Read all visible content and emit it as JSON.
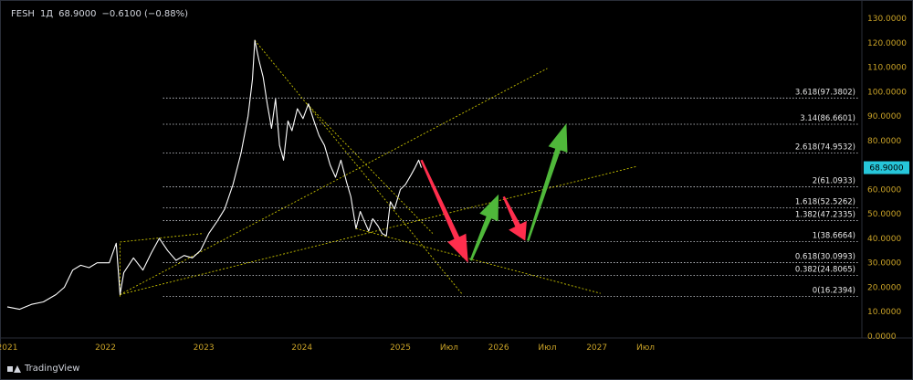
{
  "header": {
    "symbol": "FESH",
    "interval": "1Д",
    "price": "68.9000",
    "change": "−0.6100 (−0.88%)"
  },
  "footer": {
    "brand": "TradingView"
  },
  "colors": {
    "price_line": "#ffffff",
    "fib_lines": "#d1d4dc",
    "trend_lines": "#c8c200",
    "bear_arrow": "#ff2e4d",
    "bull_arrow": "#4fb83a",
    "price_badge": "#26c6da",
    "axis_text": "#c9a227"
  },
  "chart_data": {
    "type": "line",
    "title": "",
    "y_axis": {
      "range": [
        0,
        130
      ],
      "ticks": [
        "130.0000",
        "120.0000",
        "110.0000",
        "100.0000",
        "90.0000",
        "80.0000",
        "70.0000",
        "60.0000",
        "50.0000",
        "40.0000",
        "30.0000",
        "20.0000",
        "10.0000",
        "0.0000"
      ],
      "current_price_label": "68.9000",
      "current_price": 68.9
    },
    "x_axis": {
      "ticks": [
        {
          "label": "2021",
          "date": "2021-01-01"
        },
        {
          "label": "2022",
          "date": "2022-01-01"
        },
        {
          "label": "2023",
          "date": "2023-01-01"
        },
        {
          "label": "2024",
          "date": "2024-01-01"
        },
        {
          "label": "2025",
          "date": "2025-01-01"
        },
        {
          "label": "Июл",
          "date": "2025-07-01"
        },
        {
          "label": "2026",
          "date": "2026-01-01"
        },
        {
          "label": "Июл",
          "date": "2026-07-01"
        },
        {
          "label": "2027",
          "date": "2027-01-01"
        },
        {
          "label": "Июл",
          "date": "2027-07-01"
        }
      ]
    },
    "series": [
      {
        "values": [
          [
            "2021-01-01",
            12
          ],
          [
            "2021-02-15",
            11
          ],
          [
            "2021-04-01",
            13
          ],
          [
            "2021-05-15",
            14
          ],
          [
            "2021-07-01",
            17
          ],
          [
            "2021-08-01",
            20
          ],
          [
            "2021-09-01",
            27
          ],
          [
            "2021-10-01",
            29
          ],
          [
            "2021-11-01",
            28
          ],
          [
            "2021-12-01",
            30
          ],
          [
            "2022-01-15",
            30
          ],
          [
            "2022-02-10",
            38
          ],
          [
            "2022-02-24",
            17
          ],
          [
            "2022-03-10",
            26
          ],
          [
            "2022-04-15",
            32
          ],
          [
            "2022-05-20",
            27
          ],
          [
            "2022-06-20",
            34
          ],
          [
            "2022-07-20",
            40
          ],
          [
            "2022-08-20",
            35
          ],
          [
            "2022-09-20",
            31
          ],
          [
            "2022-10-20",
            33
          ],
          [
            "2022-11-20",
            32
          ],
          [
            "2022-12-20",
            35
          ],
          [
            "2023-01-20",
            42
          ],
          [
            "2023-02-20",
            47
          ],
          [
            "2023-03-20",
            52
          ],
          [
            "2023-04-20",
            62
          ],
          [
            "2023-05-20",
            75
          ],
          [
            "2023-06-15",
            90
          ],
          [
            "2023-07-01",
            105
          ],
          [
            "2023-07-10",
            121
          ],
          [
            "2023-07-25",
            113
          ],
          [
            "2023-08-10",
            106
          ],
          [
            "2023-08-25",
            95
          ],
          [
            "2023-09-10",
            85
          ],
          [
            "2023-09-25",
            97
          ],
          [
            "2023-10-10",
            78
          ],
          [
            "2023-10-25",
            72
          ],
          [
            "2023-11-10",
            88
          ],
          [
            "2023-11-25",
            84
          ],
          [
            "2023-12-15",
            93
          ],
          [
            "2024-01-05",
            89
          ],
          [
            "2024-01-25",
            95
          ],
          [
            "2024-02-15",
            88
          ],
          [
            "2024-03-05",
            82
          ],
          [
            "2024-03-25",
            78
          ],
          [
            "2024-04-15",
            70
          ],
          [
            "2024-05-05",
            65
          ],
          [
            "2024-05-25",
            72
          ],
          [
            "2024-06-15",
            63
          ],
          [
            "2024-07-01",
            57
          ],
          [
            "2024-07-20",
            44
          ],
          [
            "2024-08-05",
            51
          ],
          [
            "2024-08-20",
            47
          ],
          [
            "2024-09-05",
            43
          ],
          [
            "2024-09-20",
            48
          ],
          [
            "2024-10-10",
            45
          ],
          [
            "2024-10-25",
            42
          ],
          [
            "2024-11-10",
            41
          ],
          [
            "2024-11-25",
            55
          ],
          [
            "2024-12-10",
            52
          ],
          [
            "2025-01-01",
            60
          ],
          [
            "2025-01-20",
            62
          ],
          [
            "2025-02-10",
            66
          ],
          [
            "2025-02-25",
            69
          ],
          [
            "2025-03-10",
            72
          ],
          [
            "2025-03-20",
            68.9
          ]
        ]
      }
    ],
    "fibonacci": [
      {
        "ratio": "3.618",
        "value": 97.3802,
        "label": "3.618(97.3802)"
      },
      {
        "ratio": "3.14",
        "value": 86.6601,
        "label": "3.14(86.6601)"
      },
      {
        "ratio": "2.618",
        "value": 74.9532,
        "label": "2.618(74.9532)"
      },
      {
        "ratio": "2",
        "value": 61.0933,
        "label": "2(61.0933)"
      },
      {
        "ratio": "1.618",
        "value": 52.5262,
        "label": "1.618(52.5262)"
      },
      {
        "ratio": "1.382",
        "value": 47.2335,
        "label": "1.382(47.2335)"
      },
      {
        "ratio": "1",
        "value": 38.6664,
        "label": "1(38.6664)"
      },
      {
        "ratio": "0.618",
        "value": 30.0993,
        "label": "0.618(30.0993)"
      },
      {
        "ratio": "0.382",
        "value": 24.8065,
        "label": "0.382(24.8065)"
      },
      {
        "ratio": "0",
        "value": 16.2394,
        "label": "0(16.2394)"
      }
    ],
    "fib_start_date": "2025-01-01",
    "fib_end_date": "2027-12-31",
    "trend_lines": [
      {
        "from": [
          "2022-02-24",
          17
        ],
        "to": [
          "2026-07-01",
          109.5
        ]
      },
      {
        "from": [
          "2022-02-24",
          17
        ],
        "to": [
          "2027-06-01",
          69.5
        ]
      },
      {
        "from": [
          "2022-02-24",
          16.2
        ],
        "to": [
          "2022-02-24",
          38.5
        ]
      },
      {
        "from": [
          "2022-02-24",
          38.5
        ],
        "to": [
          "2023-01-01",
          42
        ]
      },
      {
        "from": [
          "2023-07-10",
          121
        ],
        "to": [
          "2025-08-20",
          17
        ]
      },
      {
        "from": [
          "2024-01-20",
          95
        ],
        "to": [
          "2025-05-01",
          42
        ]
      },
      {
        "from": [
          "2024-07-20",
          44
        ],
        "to": [
          "2027-01-15",
          17.5
        ]
      }
    ],
    "arrows": [
      {
        "kind": "bear",
        "from": [
          "2025-03-20",
          72
        ],
        "to": [
          "2025-09-10",
          30
        ]
      },
      {
        "kind": "bull",
        "from": [
          "2025-09-20",
          31
        ],
        "to": [
          "2026-01-01",
          58
        ]
      },
      {
        "kind": "bear",
        "from": [
          "2026-01-20",
          57
        ],
        "to": [
          "2026-04-10",
          39
        ]
      },
      {
        "kind": "bull",
        "from": [
          "2026-04-20",
          39
        ],
        "to": [
          "2026-09-10",
          87
        ]
      }
    ]
  }
}
